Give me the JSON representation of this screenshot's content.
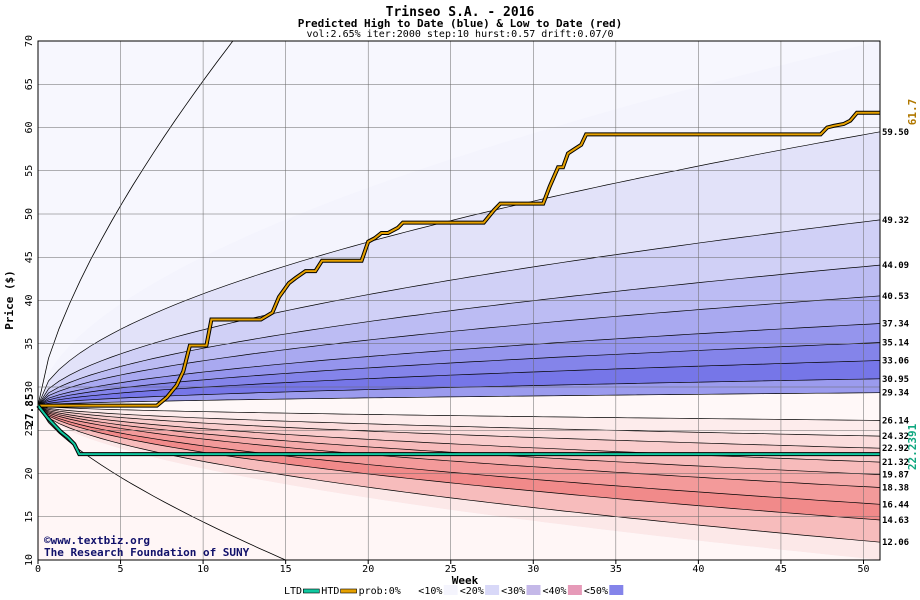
{
  "chart_data": {
    "type": "area",
    "title": "Trinseo S.A. - 2016",
    "subtitle": "Predicted High to Date (blue) &  Low to Date (red)",
    "params": "vol:2.65% iter:2000 step:10 hurst:0.57 drift:0.07/0",
    "xlabel": "Week",
    "ylabel": "Price ($)",
    "xlim": [
      0,
      51
    ],
    "ylim": [
      10,
      70
    ],
    "x_ticks": [
      "0",
      "5",
      "10",
      "15",
      "20",
      "25",
      "30",
      "35",
      "40",
      "45",
      "50"
    ],
    "y_ticks": [
      "10",
      "15",
      "20",
      "25",
      "30",
      "35",
      "40",
      "45",
      "50",
      "55",
      "60",
      "65",
      "70"
    ],
    "start_price": 27.85,
    "start_label": "27.85",
    "grid": true,
    "upper_quantile_final_values": [
      70.0,
      59.5,
      49.32,
      44.09,
      40.53,
      37.34,
      35.14,
      33.06,
      30.95,
      29.34
    ],
    "upper_labels": [
      "59.50",
      "49.32",
      "44.09",
      "40.53",
      "37.34",
      "35.14",
      "33.06",
      "30.95",
      "29.34"
    ],
    "lower_quantile_final_values": [
      26.14,
      24.32,
      22.92,
      21.32,
      19.87,
      18.38,
      16.44,
      14.63,
      12.06,
      10.0
    ],
    "lower_labels": [
      "26.14",
      "24.32",
      "22.92",
      "21.32",
      "19.87",
      "18.38",
      "16.44",
      "14.63",
      "12.06"
    ],
    "band_colors_upper": [
      "#f4f4fd",
      "#e2e2f9",
      "#d0d0f6",
      "#bcbcf3",
      "#a9a9f0",
      "#9595ed",
      "#8484ea",
      "#7676e8",
      "#9b9bee"
    ],
    "band_colors_lower": [
      "#fdecec",
      "#fbdcdc",
      "#f9cccc",
      "#f7bbbb",
      "#f5aaaa",
      "#f39a9a",
      "#f18a8a",
      "#f7bcbc",
      "#fce8e8"
    ],
    "htd": {
      "name": "HTD",
      "color": "#e6a100",
      "final_label": "61.7",
      "x": [
        0,
        7.2,
        7.8,
        8.4,
        8.8,
        9.2,
        10.2,
        10.5,
        11.2,
        13.5,
        14.2,
        14.6,
        15.2,
        15.6,
        16.2,
        16.8,
        17.2,
        17.6,
        19.6,
        20.0,
        20.4,
        20.8,
        21.2,
        21.8,
        22.1,
        27.0,
        27.6,
        28.0,
        28.6,
        30.6,
        31.0,
        31.5,
        31.8,
        32.1,
        32.5,
        32.9,
        33.2,
        47.4,
        47.8,
        48.2,
        48.8,
        49.2,
        49.6,
        50.2,
        51.0
      ],
      "y": [
        27.85,
        27.85,
        28.8,
        30.2,
        31.8,
        34.8,
        34.8,
        37.8,
        37.8,
        37.8,
        38.6,
        40.4,
        42.0,
        42.6,
        43.4,
        43.4,
        44.6,
        44.6,
        44.6,
        46.8,
        47.2,
        47.8,
        47.8,
        48.4,
        49.0,
        49.0,
        50.4,
        51.2,
        51.2,
        51.2,
        53.2,
        55.4,
        55.4,
        57.0,
        57.5,
        58.0,
        59.2,
        59.2,
        60.0,
        60.2,
        60.4,
        60.8,
        61.7,
        61.7,
        61.7
      ]
    },
    "ltd": {
      "name": "LTD",
      "color": "#10c8a0",
      "final_label": "22.2391",
      "x": [
        0,
        0.6,
        1.0,
        1.4,
        1.8,
        2.2,
        2.5,
        5.0,
        51.0
      ],
      "y": [
        27.85,
        26.4,
        25.6,
        24.8,
        24.2,
        23.4,
        22.24,
        22.24,
        22.24
      ]
    },
    "copyright": "©www.textbiz.org",
    "org": "The Research Foundation of SUNY",
    "legend": [
      {
        "label": "LTD",
        "swatch": "#10c8a0"
      },
      {
        "label": "HTD",
        "swatch": "#e6a100"
      },
      {
        "label": "prob:0%",
        "swatch": "#ffffff"
      },
      {
        "label": "<10%",
        "swatch": "#f4f4fd"
      },
      {
        "label": "<20%",
        "swatch": "#d8d8f8"
      },
      {
        "label": "<30%",
        "swatch": "#c4b8e8"
      },
      {
        "label": "<40%",
        "swatch": "#e69ab8"
      },
      {
        "label": "<50%",
        "swatch": "#8484ea"
      }
    ]
  }
}
